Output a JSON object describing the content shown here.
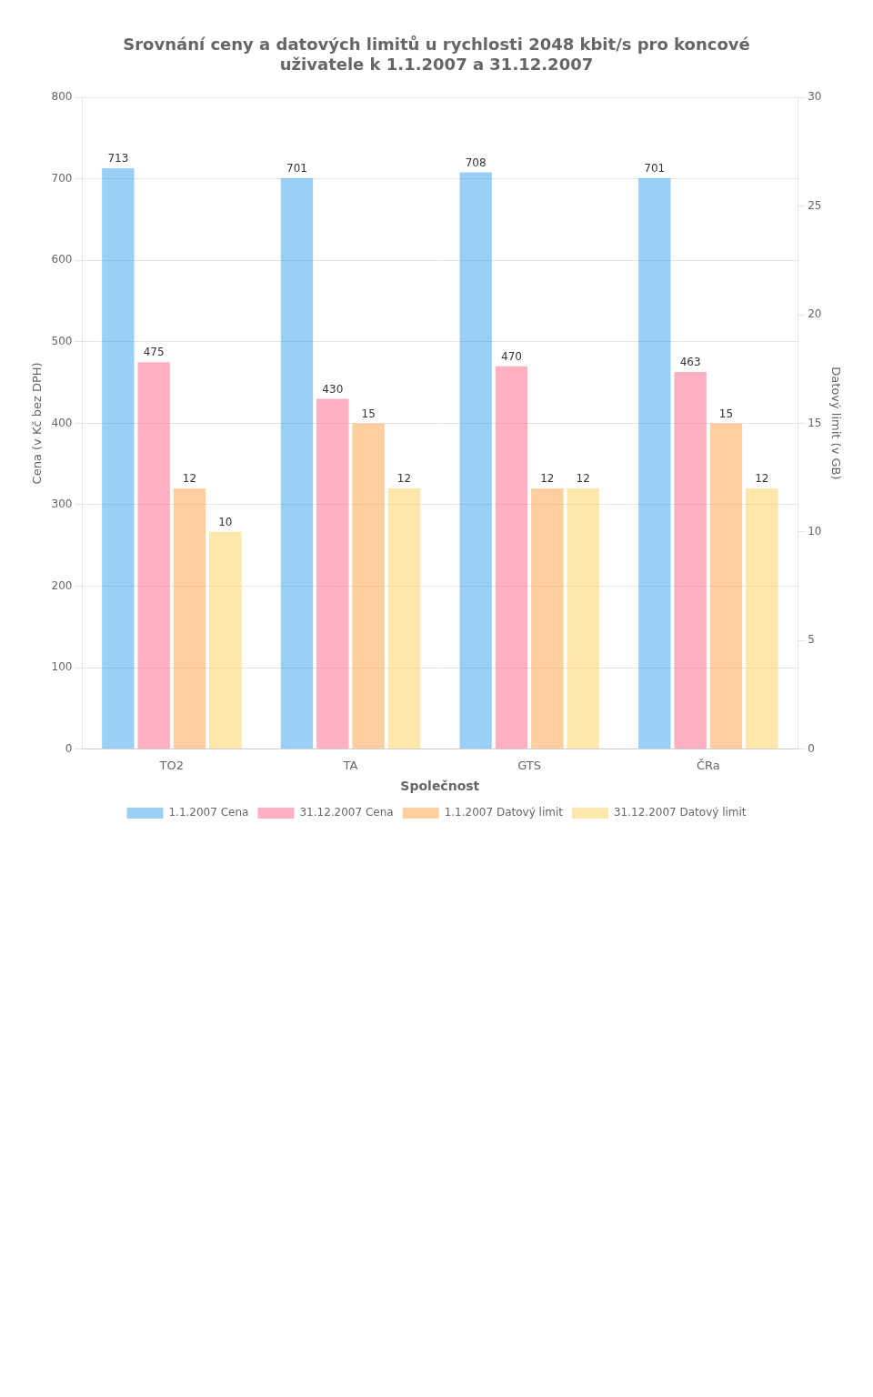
{
  "chart_data": {
    "type": "bar",
    "title": "Srovnání ceny a datových limitů u rychlosti 2048 kbit/s pro koncové\nuživatele k 1.1.2007 a 31.12.2007",
    "xlabel": "Společnost",
    "ylabel": "Cena (v Kč bez DPH)",
    "y2label": "Datový limit (v GB)",
    "categories": [
      "TO2",
      "TA",
      "GTS",
      "ČRa"
    ],
    "series": [
      {
        "name": "1.1.2007 Cena",
        "values": [
          713,
          701,
          708,
          701
        ]
      },
      {
        "name": "31.12.2007 Cena",
        "values": [
          475,
          430,
          470,
          463
        ]
      },
      {
        "name": "1.1.2007 Datový limit",
        "values": [
          12,
          15,
          12,
          15
        ],
        "axis": "y2"
      },
      {
        "name": "31.12.2007 Datový limit",
        "values": [
          10,
          12,
          12,
          12
        ],
        "axis": "y2"
      }
    ],
    "ylim": [
      0,
      800
    ],
    "yticks": [
      0,
      100,
      200,
      300,
      400,
      500,
      600,
      700,
      800
    ],
    "y2lim": [
      0,
      30
    ],
    "y2ticks": [
      0,
      5,
      10,
      15,
      20,
      25,
      30
    ],
    "grid": true,
    "legend": "bottom",
    "data_labels": true
  }
}
